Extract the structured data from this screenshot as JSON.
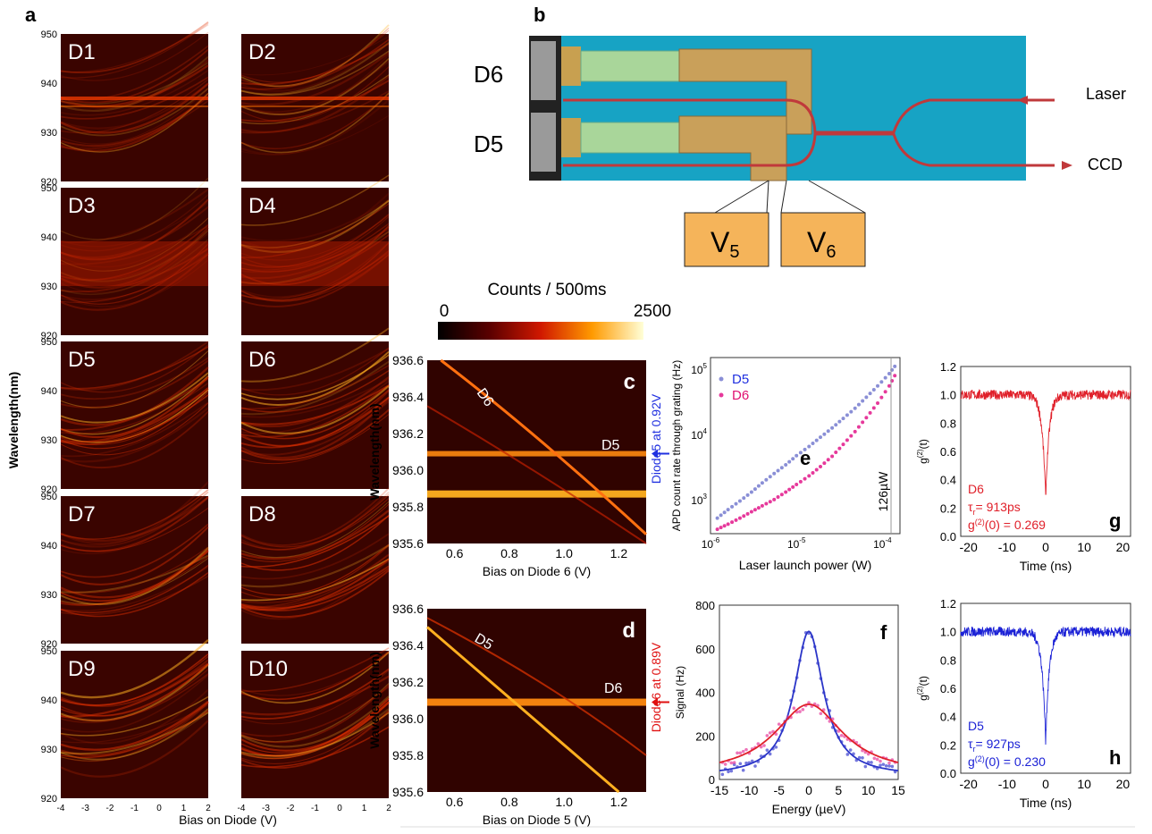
{
  "panel_a": {
    "letter": "a",
    "ylabel": "Wavelength(nm)",
    "xlabel": "Bias on Diode (V)",
    "yticks": [
      "950",
      "940",
      "930",
      "920"
    ],
    "xticks": [
      "-4",
      "-3",
      "-2",
      "-1",
      "0",
      "1",
      "2"
    ],
    "diodes": [
      "D1",
      "D2",
      "D3",
      "D4",
      "D5",
      "D6",
      "D7",
      "D8",
      "D9",
      "D10"
    ]
  },
  "panel_b": {
    "letter": "b",
    "label_d6": "D6",
    "label_d5": "D5",
    "laser": "Laser",
    "ccd": "CCD",
    "v5_main": "V",
    "v5_sub": "5",
    "v6_main": "V",
    "v6_sub": "6",
    "colors": {
      "chip": "#17a3c4",
      "pad": "#d4a85a",
      "fiber": "#c0393b"
    }
  },
  "colorbar": {
    "title": "Counts / 500ms",
    "min": "0",
    "max": "2500"
  },
  "panel_c": {
    "letter": "c",
    "ylabel": "Wavelength(nm)",
    "xlabel": "Bias on Diode 6 (V)",
    "yticks": [
      "936.6",
      "936.4",
      "936.2",
      "936.0",
      "935.8",
      "935.6"
    ],
    "xticks": [
      "0.6",
      "0.8",
      "1.0",
      "1.2"
    ],
    "line_label_1": "D6",
    "line_label_2": "D5",
    "side_note": "Diode5 at 0.92V"
  },
  "panel_d": {
    "letter": "d",
    "ylabel": "Wavelength(nm)",
    "xlabel": "Bias on Diode 5 (V)",
    "yticks": [
      "936.6",
      "936.4",
      "936.2",
      "936.0",
      "935.8",
      "935.6"
    ],
    "xticks": [
      "0.6",
      "0.8",
      "1.0",
      "1.2"
    ],
    "line_label_1": "D5",
    "line_label_2": "D6",
    "side_note": "Diode6 at 0.89V"
  },
  "chart_data": [
    {
      "type": "scatter",
      "panel": "e",
      "xlabel": "Laser launch power (W)",
      "ylabel": "APD count rate through grating (Hz)",
      "xscale": "log",
      "yscale": "log",
      "xlim": [
        1e-06,
        0.00016
      ],
      "ylim": [
        300,
        150000
      ],
      "annotation": "126µW",
      "legend_placement": "top-left",
      "series": [
        {
          "name": "D5",
          "color": "#8a8fd6",
          "x": [
            1.2e-06,
            1.6e-06,
            2.2e-06,
            3e-06,
            4e-06,
            5.5e-06,
            7.5e-06,
            1e-05,
            1.4e-05,
            1.9e-05,
            2.6e-05,
            3.5e-05,
            4.8e-05,
            6.5e-05,
            8.8e-05,
            0.00012,
            0.00015
          ],
          "y": [
            520,
            700,
            950,
            1300,
            1800,
            2500,
            3400,
            4700,
            6500,
            9000,
            12500,
            17500,
            25000,
            37000,
            55000,
            85000,
            125000
          ]
        },
        {
          "name": "D6",
          "color": "#e6399b",
          "x": [
            1.2e-06,
            1.6e-06,
            2.2e-06,
            3e-06,
            4e-06,
            5.5e-06,
            7.5e-06,
            1e-05,
            1.4e-05,
            1.9e-05,
            2.6e-05,
            3.5e-05,
            4.8e-05,
            6.5e-05,
            8.8e-05,
            0.00012,
            0.00015
          ],
          "y": [
            350,
            420,
            520,
            650,
            800,
            1000,
            1300,
            1700,
            2300,
            3200,
            4600,
            7000,
            11000,
            18000,
            30000,
            55000,
            95000
          ]
        }
      ],
      "xticks": [
        "10",
        "10",
        "10"
      ],
      "xtick_exp": [
        "-6",
        "-5",
        "-4"
      ],
      "yticks": [
        "10",
        "10",
        "10"
      ],
      "ytick_exp": [
        "3",
        "4",
        "5"
      ]
    },
    {
      "type": "scatter",
      "panel": "f",
      "xlabel": "Energy (µeV)",
      "ylabel": "Signal (Hz)",
      "xlim": [
        -15,
        15
      ],
      "ylim": [
        0,
        800
      ],
      "xticks": [
        "-15",
        "-10",
        "-5",
        "0",
        "5",
        "10",
        "15"
      ],
      "yticks": [
        "0",
        "200",
        "400",
        "600",
        "800"
      ],
      "series": [
        {
          "name": "",
          "color": "#3a3fcf",
          "fit_color": "#2b35c8",
          "peak": 680,
          "fwhm": 6,
          "base": 15
        },
        {
          "name": "",
          "color": "#e6399b",
          "fit_color": "#e0202a",
          "peak": 345,
          "fwhm": 14,
          "base": 20
        }
      ]
    },
    {
      "type": "line",
      "panel": "g",
      "xlabel": "Time (ns)",
      "ylabel": "g(2)(t)",
      "xlim": [
        -22,
        22
      ],
      "ylim": [
        0,
        1.2
      ],
      "xticks": [
        "-20",
        "-10",
        "0",
        "10",
        "20"
      ],
      "yticks": [
        "0.0",
        "0.2",
        "0.4",
        "0.6",
        "0.8",
        "1.0",
        "1.2"
      ],
      "color": "#e0202a",
      "tau_ns": 0.913,
      "g2_zero": 0.269
    },
    {
      "type": "line",
      "panel": "h",
      "xlabel": "Time (ns)",
      "ylabel": "g(2)(t)",
      "xlim": [
        -22,
        22
      ],
      "ylim": [
        0,
        1.2
      ],
      "xticks": [
        "-20",
        "-10",
        "0",
        "10",
        "20"
      ],
      "yticks": [
        "0.0",
        "0.2",
        "0.4",
        "0.6",
        "0.8",
        "1.0",
        "1.2"
      ],
      "color": "#1c22d6",
      "tau_ns": 0.927,
      "g2_zero": 0.23
    }
  ],
  "panel_e": {
    "letter": "e",
    "legend_d5": "D5",
    "legend_d6": "D6",
    "annotation": "126µW"
  },
  "panel_f": {
    "letter": "f"
  },
  "panel_g": {
    "letter": "g",
    "diode": "D6",
    "tau_text": "= 913ps",
    "g2_text": "(0) = 0.269"
  },
  "panel_h": {
    "letter": "h",
    "diode": "D5",
    "tau_text": "= 927ps",
    "g2_text": "(0) = 0.230"
  }
}
